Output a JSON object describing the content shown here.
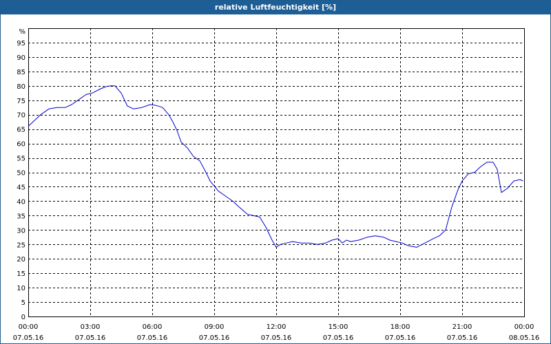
{
  "title": "relative Luftfeuchtigkeit [%]",
  "colors": {
    "titlebar": "#1d5e96",
    "line": "#0000cc",
    "grid": "#000000"
  },
  "chart_data": {
    "type": "line",
    "title": "relative Luftfeuchtigkeit [%]",
    "ylabel": "%",
    "xlabel": "",
    "ylim": [
      0,
      100
    ],
    "y_ticks": [
      0,
      5,
      10,
      15,
      20,
      25,
      30,
      35,
      40,
      45,
      50,
      55,
      60,
      65,
      70,
      75,
      80,
      85,
      90,
      95
    ],
    "x_range_hours": [
      0,
      24
    ],
    "x_ticks": [
      {
        "time": "00:00",
        "date": "07.05.16"
      },
      {
        "time": "03:00",
        "date": "07.05.16"
      },
      {
        "time": "06:00",
        "date": "07.05.16"
      },
      {
        "time": "09:00",
        "date": "07.05.16"
      },
      {
        "time": "12:00",
        "date": "07.05.16"
      },
      {
        "time": "15:00",
        "date": "07.05.16"
      },
      {
        "time": "18:00",
        "date": "07.05.16"
      },
      {
        "time": "21:00",
        "date": "07.05.16"
      },
      {
        "time": "00:00",
        "date": "08.05.16"
      }
    ],
    "grid": true,
    "series": [
      {
        "color": "#0000cc",
        "x": [
          0,
          0.3,
          0.6,
          1.0,
          1.4,
          1.8,
          2.1,
          2.5,
          2.8,
          3.1,
          3.5,
          3.8,
          4.0,
          4.2,
          4.5,
          4.8,
          5.1,
          5.5,
          5.9,
          6.2,
          6.5,
          6.8,
          7.0,
          7.2,
          7.4,
          7.7,
          8.0,
          8.3,
          8.6,
          8.8,
          9.2,
          9.6,
          9.9,
          10.2,
          10.6,
          10.9,
          11.2,
          11.5,
          11.8,
          12.0,
          12.2,
          12.5,
          12.8,
          13.2,
          13.6,
          14.0,
          14.4,
          14.7,
          15.0,
          15.2,
          15.4,
          15.6,
          16.0,
          16.4,
          16.8,
          17.2,
          17.5,
          17.8,
          18.1,
          18.4,
          18.8,
          19.2,
          19.6,
          19.9,
          20.2,
          20.5,
          20.8,
          21.0,
          21.3,
          21.6,
          21.9,
          22.2,
          22.5,
          22.7,
          22.9,
          23.2,
          23.5,
          23.8,
          23.95
        ],
        "y": [
          66,
          68,
          70,
          72,
          72.5,
          72.5,
          73.5,
          75.5,
          77,
          77.5,
          79,
          79.8,
          80,
          80,
          77.5,
          73,
          72,
          72.5,
          73.5,
          73.2,
          72.5,
          70,
          67.5,
          64.5,
          60.5,
          58.5,
          55.5,
          54,
          50,
          47,
          43.5,
          41.5,
          40,
          38,
          35.5,
          35,
          34.5,
          31,
          26.5,
          24,
          25,
          25.5,
          26,
          25.5,
          25.5,
          25,
          25.5,
          26.5,
          27,
          25.5,
          26.5,
          26,
          26.5,
          27.5,
          28,
          27.5,
          26.5,
          26,
          25.5,
          24.5,
          24,
          25.5,
          27,
          28,
          30,
          38,
          44,
          47,
          49.5,
          50,
          52,
          53.5,
          53.5,
          51,
          43,
          44.5,
          47,
          47.5,
          47
        ]
      }
    ]
  }
}
